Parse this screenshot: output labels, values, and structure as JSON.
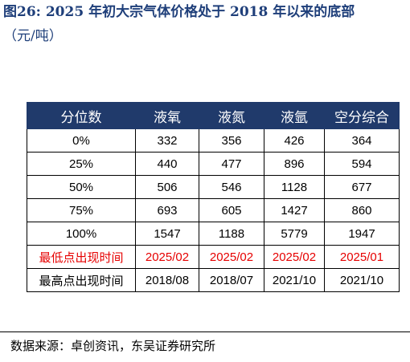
{
  "figure": {
    "title": "图26:  2025 年初大宗气体价格处于 2018 年以来的底部",
    "unit": "（元/吨）"
  },
  "table": {
    "headers": [
      "分位数",
      "液氧",
      "液氮",
      "液氩",
      "空分综合"
    ],
    "rows": [
      [
        "0%",
        "332",
        "356",
        "426",
        "364"
      ],
      [
        "25%",
        "440",
        "477",
        "896",
        "594"
      ],
      [
        "50%",
        "506",
        "546",
        "1128",
        "677"
      ],
      [
        "75%",
        "693",
        "605",
        "1427",
        "860"
      ],
      [
        "100%",
        "1547",
        "1188",
        "5779",
        "1947"
      ],
      [
        "最低点出现时间",
        "2025/02",
        "2025/02",
        "2025/02",
        "2025/01"
      ],
      [
        "最高点出现时间",
        "2018/08",
        "2018/07",
        "2021/10",
        "2021/10"
      ]
    ],
    "highlight_color": "#e60000",
    "header_bg": "#203a6b"
  },
  "source": "数据来源：卓创资讯，东吴证券研究所"
}
